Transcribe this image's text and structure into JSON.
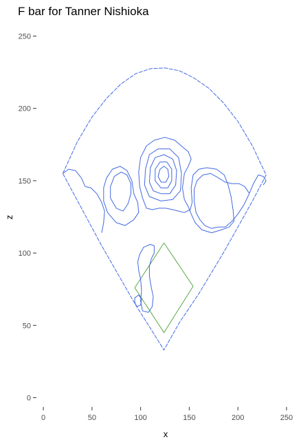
{
  "chart_data": {
    "type": "line",
    "title": "F bar for Tanner Nishioka",
    "xlabel": "x",
    "ylabel": "z",
    "xlim": [
      -5,
      255
    ],
    "ylim": [
      -5,
      255
    ],
    "x_ticks": [
      0,
      50,
      100,
      150,
      200,
      250
    ],
    "y_ticks": [
      0,
      50,
      100,
      150,
      200,
      250
    ],
    "grid": false,
    "colors": {
      "field": "#4169e1",
      "infield": "#5aa846",
      "contour": "#4169e1"
    },
    "field_outline": [
      [
        20,
        155
      ],
      [
        35,
        177
      ],
      [
        50,
        194
      ],
      [
        65,
        207
      ],
      [
        80,
        217
      ],
      [
        95,
        224
      ],
      [
        110,
        227.5
      ],
      [
        125,
        228
      ],
      [
        140,
        226
      ],
      [
        155,
        221
      ],
      [
        170,
        214
      ],
      [
        185,
        204
      ],
      [
        200,
        191
      ],
      [
        215,
        174
      ],
      [
        229,
        154
      ],
      [
        215,
        136
      ],
      [
        185,
        100
      ],
      [
        160,
        72
      ],
      [
        150,
        62
      ],
      [
        140,
        52
      ],
      [
        124,
        33
      ],
      [
        110,
        48
      ],
      [
        95,
        64
      ],
      [
        60,
        105
      ],
      [
        20,
        155
      ]
    ],
    "infield_outline": [
      [
        124,
        107
      ],
      [
        154,
        77
      ],
      [
        124,
        45
      ],
      [
        94,
        76
      ],
      [
        124,
        107
      ]
    ],
    "contours": [
      [
        [
          20,
          155
        ],
        [
          26,
          158
        ],
        [
          33,
          157
        ],
        [
          39,
          152
        ],
        [
          43,
          146
        ],
        [
          49,
          145
        ],
        [
          55,
          141
        ],
        [
          60,
          135
        ],
        [
          63,
          129
        ],
        [
          62,
          121
        ],
        [
          60,
          114
        ]
      ],
      [
        [
          226,
          147
        ],
        [
          229,
          150
        ],
        [
          226,
          153
        ],
        [
          221,
          154
        ],
        [
          216,
          148
        ],
        [
          211,
          140
        ],
        [
          206,
          133
        ],
        [
          200,
          127
        ],
        [
          194,
          122
        ],
        [
          187,
          118
        ],
        [
          180,
          118
        ],
        [
          173,
          117
        ],
        [
          166,
          119
        ],
        [
          161,
          123
        ],
        [
          157,
          128
        ],
        [
          155,
          136
        ],
        [
          155,
          144
        ],
        [
          158,
          150
        ],
        [
          164,
          154
        ],
        [
          172,
          155
        ],
        [
          180,
          152
        ],
        [
          187,
          149
        ],
        [
          194,
          148
        ],
        [
          201,
          148
        ],
        [
          207,
          146
        ],
        [
          212,
          141
        ]
      ],
      [
        [
          75,
          131
        ],
        [
          82,
          129
        ],
        [
          87,
          134
        ],
        [
          90,
          141
        ],
        [
          90,
          148
        ],
        [
          86,
          154
        ],
        [
          80,
          156
        ],
        [
          73,
          153
        ],
        [
          69,
          146
        ],
        [
          69,
          138
        ],
        [
          75,
          131
        ]
      ],
      [
        [
          75,
          121
        ],
        [
          84,
          119
        ],
        [
          93,
          123
        ],
        [
          98,
          128
        ],
        [
          97,
          135
        ],
        [
          93,
          141
        ],
        [
          91,
          150
        ],
        [
          86,
          157
        ],
        [
          79,
          160
        ],
        [
          71,
          158
        ],
        [
          65,
          152
        ],
        [
          62,
          145
        ],
        [
          62,
          136
        ],
        [
          66,
          128
        ],
        [
          75,
          121
        ]
      ],
      [
        [
          121,
          149
        ],
        [
          126,
          149
        ],
        [
          129,
          153
        ],
        [
          128,
          158
        ],
        [
          124,
          160
        ],
        [
          120,
          158
        ],
        [
          118,
          153
        ],
        [
          121,
          149
        ]
      ],
      [
        [
          121,
          145
        ],
        [
          128,
          145
        ],
        [
          132,
          150
        ],
        [
          132,
          158
        ],
        [
          127,
          163
        ],
        [
          120,
          163
        ],
        [
          115,
          158
        ],
        [
          115,
          150
        ],
        [
          121,
          145
        ]
      ],
      [
        [
          121,
          141
        ],
        [
          130,
          141
        ],
        [
          136,
          147
        ],
        [
          137,
          157
        ],
        [
          133,
          165
        ],
        [
          124,
          168
        ],
        [
          115,
          166
        ],
        [
          110,
          159
        ],
        [
          109,
          149
        ],
        [
          113,
          143
        ],
        [
          121,
          141
        ]
      ],
      [
        [
          121,
          136
        ],
        [
          133,
          137
        ],
        [
          141,
          143
        ],
        [
          142,
          155
        ],
        [
          139,
          166
        ],
        [
          130,
          172
        ],
        [
          118,
          172
        ],
        [
          109,
          168
        ],
        [
          105,
          158
        ],
        [
          104,
          147
        ],
        [
          109,
          139
        ],
        [
          121,
          136
        ]
      ],
      [
        [
          102,
          138
        ],
        [
          106,
          131
        ],
        [
          112,
          130
        ],
        [
          119,
          131
        ],
        [
          126,
          131
        ],
        [
          133,
          130
        ],
        [
          139,
          129
        ],
        [
          145,
          128
        ],
        [
          151,
          130
        ],
        [
          153,
          135
        ],
        [
          152,
          145
        ],
        [
          154,
          154
        ],
        [
          160,
          158
        ],
        [
          168,
          159
        ],
        [
          178,
          158
        ],
        [
          186,
          154
        ],
        [
          190,
          147
        ],
        [
          193,
          139
        ],
        [
          195,
          130
        ],
        [
          196,
          122
        ],
        [
          191,
          118
        ],
        [
          183,
          116
        ],
        [
          173,
          114
        ],
        [
          163,
          116
        ],
        [
          156,
          121
        ],
        [
          152,
          127
        ],
        [
          149,
          132
        ],
        [
          145,
          137
        ],
        [
          143,
          145
        ],
        [
          145,
          155
        ],
        [
          149,
          160
        ],
        [
          152,
          165
        ],
        [
          149,
          170
        ],
        [
          142,
          174
        ],
        [
          135,
          178
        ],
        [
          125,
          180
        ],
        [
          114,
          178
        ],
        [
          106,
          174
        ],
        [
          100,
          166
        ],
        [
          98,
          156
        ],
        [
          99,
          146
        ],
        [
          102,
          138
        ]
      ],
      [
        [
          94,
          66
        ],
        [
          96,
          63
        ],
        [
          100,
          64
        ],
        [
          101,
          68
        ],
        [
          98,
          71
        ],
        [
          94,
          69
        ],
        [
          94,
          66
        ]
      ],
      [
        [
          102,
          60
        ],
        [
          108,
          59
        ],
        [
          112,
          63
        ],
        [
          113,
          70
        ],
        [
          111,
          76
        ],
        [
          109,
          84
        ],
        [
          109,
          91
        ],
        [
          111,
          96
        ],
        [
          114,
          100
        ],
        [
          114,
          105
        ],
        [
          110,
          106
        ],
        [
          103,
          104
        ],
        [
          99,
          99
        ],
        [
          97,
          94
        ],
        [
          98,
          88
        ],
        [
          100,
          82
        ],
        [
          101,
          74
        ],
        [
          100,
          67
        ],
        [
          102,
          60
        ]
      ]
    ]
  }
}
